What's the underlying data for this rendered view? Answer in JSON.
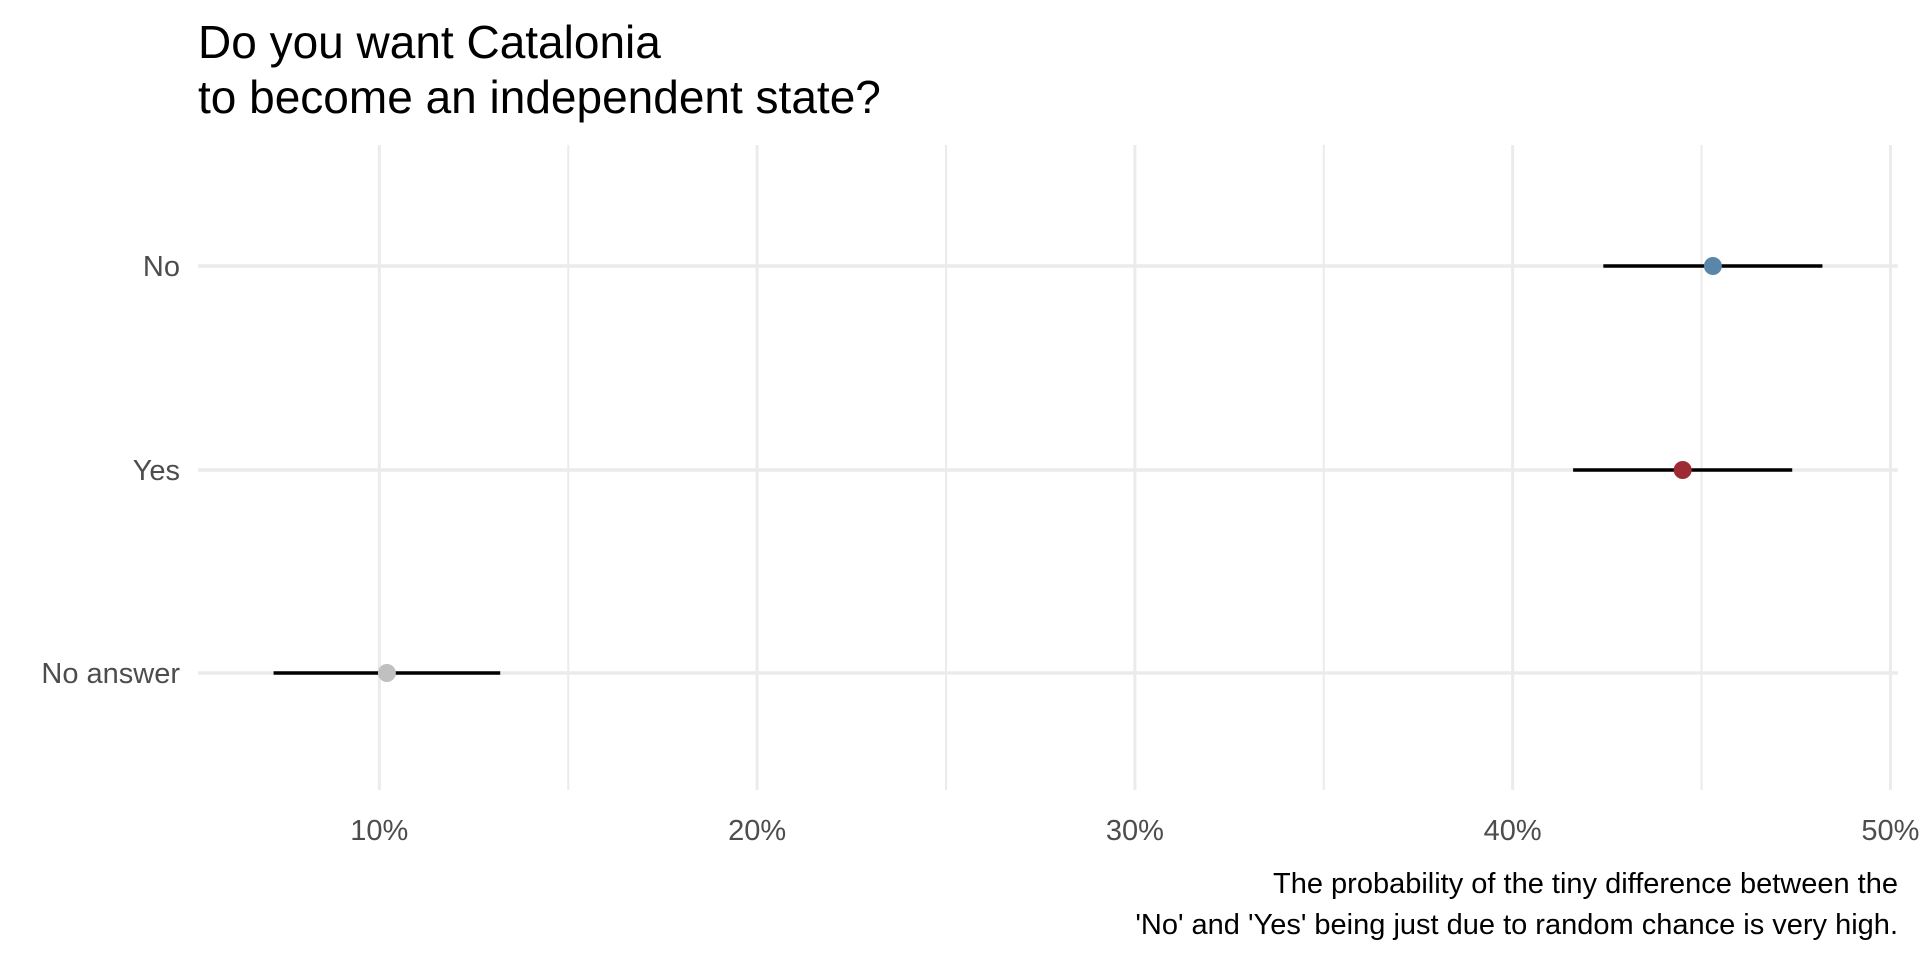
{
  "chart_data": {
    "type": "scatter",
    "title_lines": [
      "Do you want Catalonia",
      "to become an independent state?"
    ],
    "xlabel": "",
    "ylabel": "",
    "x_axis": {
      "range": [
        0.052,
        0.502
      ],
      "ticks": [
        0.1,
        0.2,
        0.3,
        0.4,
        0.5
      ],
      "tick_labels": [
        "10%",
        "20%",
        "30%",
        "40%",
        "50%"
      ],
      "minor_gridlines": [
        0.15,
        0.25,
        0.35,
        0.45
      ],
      "grid": true
    },
    "categories": [
      "No",
      "Yes",
      "No answer"
    ],
    "points": [
      {
        "label": "No",
        "value": 0.453,
        "lower": 0.424,
        "upper": 0.482,
        "color": "#5a86aa"
      },
      {
        "label": "Yes",
        "value": 0.445,
        "lower": 0.416,
        "upper": 0.474,
        "color": "#9e2a35"
      },
      {
        "label": "No answer",
        "value": 0.102,
        "lower": 0.072,
        "upper": 0.132,
        "color": "#c0c0c0"
      }
    ],
    "caption_lines": [
      "The probability of the tiny difference between the",
      "'No' and 'Yes' being just due to random chance is very high."
    ],
    "colors": {
      "grid": "#ebebeb",
      "interval": "#000000",
      "tick_text": "#4d4d4d"
    }
  }
}
